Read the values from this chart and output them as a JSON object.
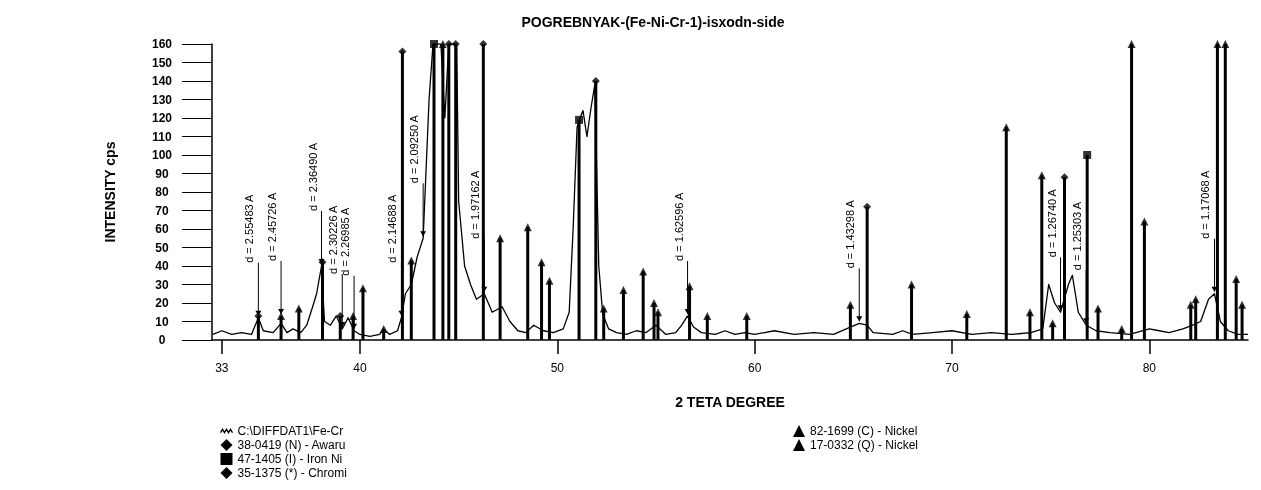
{
  "chart_data": {
    "type": "line",
    "title": "POGREBNYAK-(Fe-Ni-Cr-1)-isxodn-side",
    "xlabel": "2 TETA DEGREE",
    "ylabel": "INTENSITY cps",
    "xlim": [
      32.5,
      85
    ],
    "xticks": [
      33,
      40,
      50,
      60,
      70,
      80
    ],
    "ylim": [
      0,
      160
    ],
    "yticks": [
      0,
      10,
      20,
      30,
      40,
      50,
      60,
      70,
      80,
      90,
      100,
      110,
      120,
      130,
      140,
      150,
      160
    ],
    "grid": false,
    "legend": "bottom",
    "marker": "none",
    "line_style": "solid",
    "series": [
      {
        "name": "C:\\DIFFDAT1\\Fe-Cr",
        "color": "#000000",
        "x": [
          32.55,
          33,
          33.5,
          34,
          34.5,
          34.85,
          35.1,
          35.6,
          36,
          36.3,
          36.6,
          37,
          37.3,
          37.6,
          37.8,
          38.05,
          38.2,
          38.5,
          38.8,
          39.1,
          39.4,
          39.7,
          40,
          40.5,
          41,
          41.2,
          41.5,
          41.9,
          42.1,
          42.3,
          42.6,
          42.9,
          43.2,
          43.5,
          43.7,
          44.1,
          44.3,
          44.5,
          44.9,
          45,
          45.3,
          45.6,
          45.9,
          46.3,
          46.7,
          47.2,
          47.6,
          48,
          48.4,
          48.8,
          49.3,
          49.8,
          50.3,
          50.6,
          50.8,
          51,
          51.15,
          51.3,
          51.5,
          51.7,
          51.9,
          52.1,
          52.3,
          52.6,
          53,
          53.5,
          54,
          54.5,
          55,
          55.5,
          56,
          56.3,
          56.6,
          56.9,
          57.3,
          58,
          58.5,
          59,
          59.5,
          60,
          61,
          62,
          63,
          64,
          64.85,
          65.3,
          65.7,
          66,
          67,
          67.5,
          68,
          69,
          70,
          71,
          72,
          73,
          74,
          74.6,
          74.9,
          75.2,
          75.5,
          75.9,
          76.1,
          76.4,
          76.8,
          77.3,
          78,
          79,
          80,
          80.5,
          81,
          81.7,
          82.2,
          82.6,
          83,
          83.3,
          83.6,
          84,
          84.5,
          85
        ],
        "values": [
          3,
          5,
          3,
          4,
          3,
          12,
          5,
          4,
          9,
          4,
          6,
          4,
          8,
          18,
          25,
          40,
          10,
          8,
          13,
          6,
          12,
          5,
          3,
          2,
          3,
          6,
          3,
          5,
          12,
          25,
          30,
          45,
          55,
          130,
          160,
          160,
          120,
          160,
          160,
          75,
          40,
          30,
          22,
          25,
          15,
          18,
          10,
          5,
          4,
          8,
          5,
          4,
          6,
          15,
          60,
          115,
          120,
          124,
          110,
          125,
          138,
          40,
          14,
          6,
          4,
          3,
          5,
          4,
          8,
          3,
          4,
          8,
          13,
          7,
          4,
          3,
          5,
          3,
          4,
          3,
          5,
          3,
          4,
          3,
          7,
          9,
          8,
          4,
          3,
          5,
          3,
          4,
          5,
          3,
          4,
          3,
          4,
          6,
          30,
          20,
          15,
          30,
          35,
          15,
          8,
          5,
          4,
          3,
          6,
          5,
          4,
          6,
          8,
          10,
          22,
          25,
          10,
          5,
          3,
          3
        ]
      },
      {
        "name": "38-0419 (N) - Awaru",
        "type": "lollipop",
        "marker": "diamond",
        "color": "#000000",
        "x": [
          34.85,
          38.1,
          42.15,
          44.5,
          51.95,
          75.7
        ],
        "values": [
          13,
          42,
          156,
          160,
          140,
          88
        ]
      },
      {
        "name": "47-1405 (I) - Iron Ni",
        "type": "lollipop",
        "marker": "square",
        "color": "#000000",
        "x": [
          43.75,
          51.1,
          76.85
        ],
        "values": [
          160,
          119,
          100
        ]
      },
      {
        "name": "35-1375 (*) - Chromi",
        "type": "lollipop",
        "marker": "diamond",
        "color": "#000000",
        "x": [
          39.0,
          44.85,
          46.25,
          65.7
        ],
        "values": [
          13,
          160,
          160,
          72
        ]
      },
      {
        "name": "82-1699 (C) - Nickel",
        "type": "lollipop",
        "marker": "triangle",
        "color": "#000000",
        "x": [
          36.9,
          40.15,
          42.6,
          47.1,
          49.6,
          53.35,
          54.9,
          56.7,
          73.95,
          78.6,
          84.4,
          84.7
        ],
        "values": [
          17,
          28,
          43,
          55,
          32,
          27,
          20,
          29,
          15,
          6,
          33,
          19
        ]
      },
      {
        "name": "17-0332 (Q) - Nickel",
        "type": "lollipop",
        "marker": "triangle",
        "color": "#000000",
        "x": [
          36.0,
          39.65,
          41.2,
          44.2,
          48.5,
          49.2,
          52.35,
          54.35,
          55.1,
          57.6,
          59.6,
          64.85,
          67.95,
          70.75,
          72.75,
          74.55,
          75.1,
          77.4,
          79.1,
          79.75,
          82.1,
          82.35,
          83.45,
          83.85
        ],
        "values": [
          13,
          13,
          6,
          160,
          61,
          42,
          17,
          37,
          15,
          13,
          13,
          19,
          30,
          14,
          115,
          89,
          9,
          17,
          160,
          64,
          19,
          22,
          160,
          160
        ]
      }
    ],
    "annotations": [
      {
        "text": "d = 2.55483 A",
        "x": 34.85,
        "y": 12
      },
      {
        "text": "d = 2.45726 A",
        "x": 36.0,
        "y": 13
      },
      {
        "text": "d = 2.36490 A",
        "x": 38.05,
        "y": 40
      },
      {
        "text": "d = 2.30226 A",
        "x": 39.1,
        "y": 6
      },
      {
        "text": "d = 2.26985 A",
        "x": 39.7,
        "y": 5
      },
      {
        "text": "d = 2.14688 A",
        "x": 42.1,
        "y": 12
      },
      {
        "text": "d = 2.09250 A",
        "x": 43.2,
        "y": 55
      },
      {
        "text": "d = 1.97162 A",
        "x": 46.3,
        "y": 25
      },
      {
        "text": "d = 1.62596 A",
        "x": 56.6,
        "y": 13
      },
      {
        "text": "d = 1.43298 A",
        "x": 65.3,
        "y": 9
      },
      {
        "text": "d = 1.26740 A",
        "x": 75.5,
        "y": 15
      },
      {
        "text": "d = 1.25303 A",
        "x": 76.8,
        "y": 8
      },
      {
        "text": "d = 1.17068 A",
        "x": 83.3,
        "y": 25
      }
    ]
  }
}
